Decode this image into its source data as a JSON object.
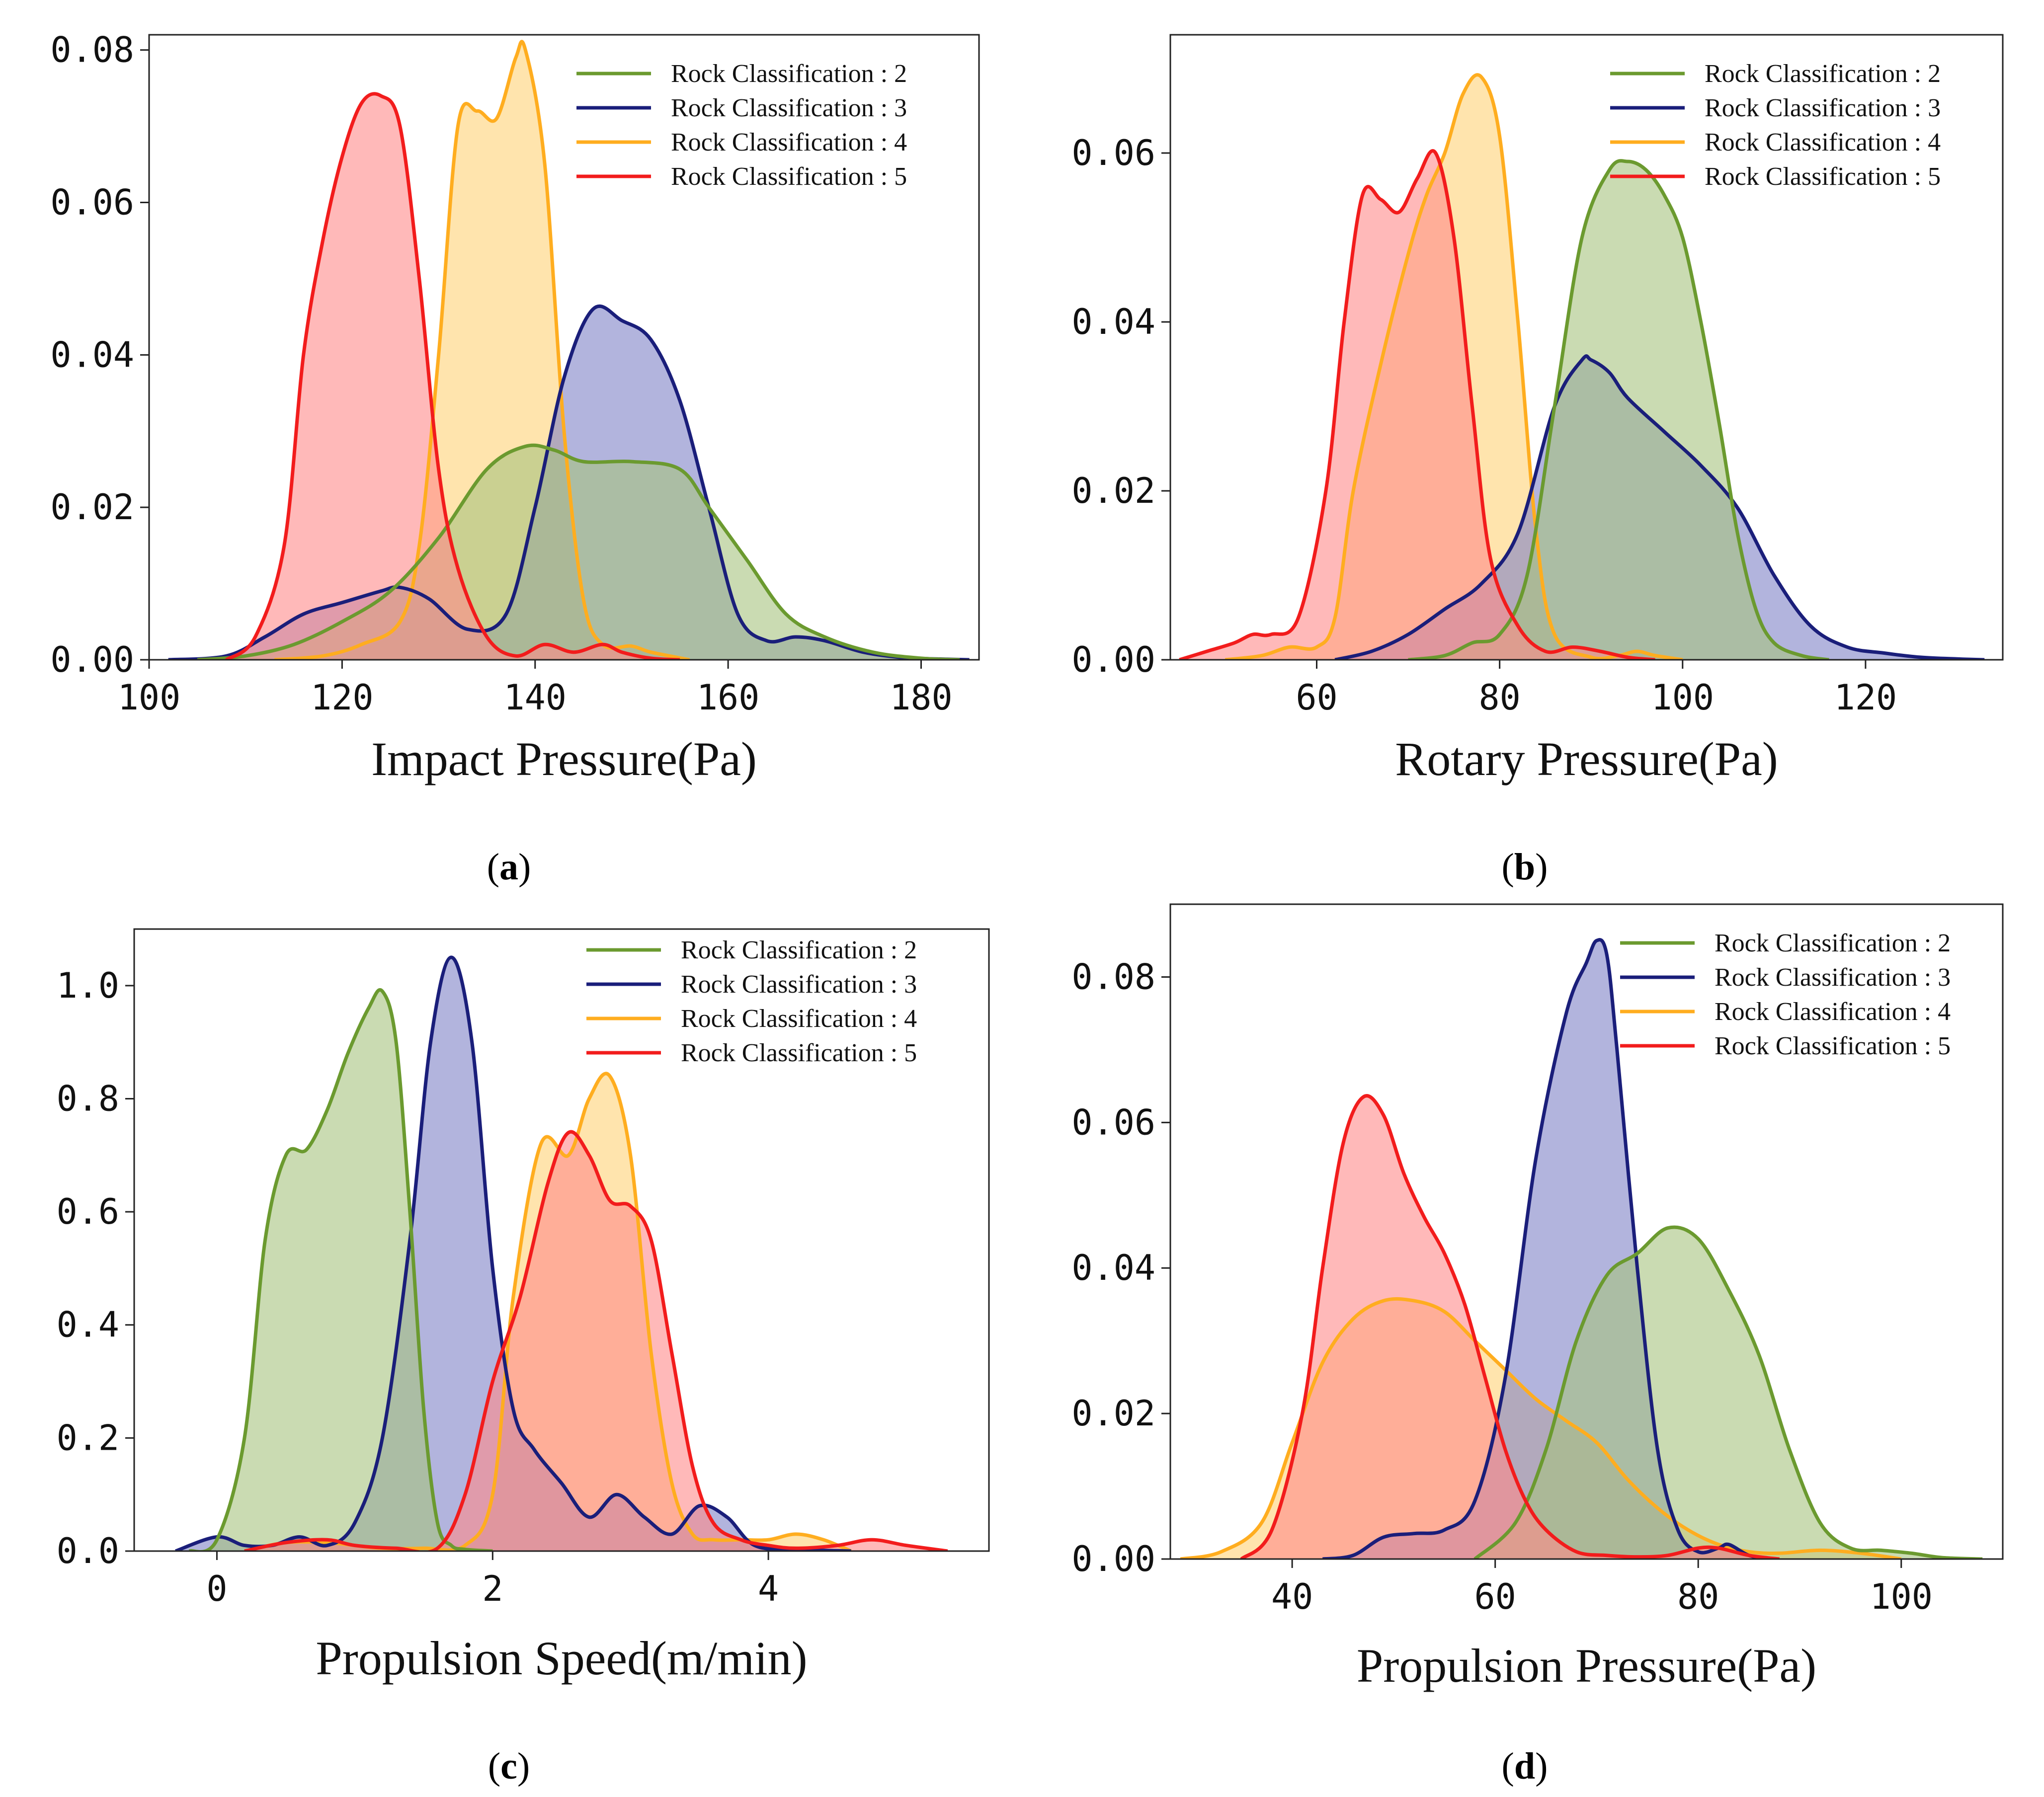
{
  "colors": {
    "rock2": "#6b9a2f",
    "rock3": "#1a1e7a",
    "rock4": "#ffad1f",
    "rock5": "#f21c1c",
    "fill2": "#a6c37f",
    "fill3": "#7f82c6",
    "fill4": "#ffd277",
    "fill5": "#ff8a8a"
  },
  "chart_data": [
    {
      "type": "area",
      "panel": "(a)",
      "caption_letter": "a",
      "xlabel": "Impact Pressure(Pa)",
      "ylabel": "",
      "xlim": [
        100,
        186
      ],
      "ylim": [
        0,
        0.082
      ],
      "xticks": [
        100,
        120,
        140,
        160,
        180
      ],
      "xtick_labels": [
        "100",
        "120",
        "140",
        "160",
        "180"
      ],
      "yticks": [
        0,
        0.02,
        0.04,
        0.06,
        0.08
      ],
      "ytick_labels": [
        "0.00",
        "0.02",
        "0.04",
        "0.06",
        "0.08"
      ],
      "legend": "top-right",
      "series": [
        {
          "name": "Rock Classification : 2",
          "key": "rock2",
          "x": [
            105,
            110,
            115,
            120,
            125,
            130,
            135,
            139,
            142,
            145,
            150,
            155,
            158,
            162,
            166,
            170,
            175,
            180,
            184
          ],
          "y": [
            0,
            0.0005,
            0.002,
            0.005,
            0.009,
            0.016,
            0.025,
            0.028,
            0.0275,
            0.026,
            0.026,
            0.025,
            0.02,
            0.013,
            0.006,
            0.003,
            0.001,
            0.0002,
            0
          ]
        },
        {
          "name": "Rock Classification : 3",
          "key": "rock3",
          "x": [
            102,
            108,
            112,
            116,
            120,
            124,
            126,
            129,
            133,
            137,
            140,
            143,
            146,
            149,
            152,
            155,
            158,
            161,
            164,
            167,
            170,
            174,
            178,
            182,
            185
          ],
          "y": [
            0,
            0.0005,
            0.003,
            0.006,
            0.0075,
            0.009,
            0.0095,
            0.008,
            0.004,
            0.006,
            0.02,
            0.037,
            0.046,
            0.0445,
            0.042,
            0.034,
            0.02,
            0.006,
            0.0025,
            0.003,
            0.0025,
            0.001,
            0.0003,
            0.0001,
            0
          ]
        },
        {
          "name": "Rock Classification : 4",
          "key": "rock4",
          "x": [
            113,
            118,
            122,
            126,
            128,
            130,
            132,
            134,
            136,
            138,
            139,
            141,
            143,
            145,
            147,
            150,
            152,
            156
          ],
          "y": [
            0,
            0.0005,
            0.002,
            0.005,
            0.015,
            0.04,
            0.07,
            0.072,
            0.071,
            0.079,
            0.08,
            0.065,
            0.03,
            0.008,
            0.002,
            0.0018,
            0.001,
            0
          ]
        },
        {
          "name": "Rock Classification : 5",
          "key": "rock5",
          "x": [
            108,
            111,
            114,
            116,
            118,
            120,
            122,
            124,
            126,
            128,
            130,
            132,
            135,
            138,
            141,
            144,
            147,
            149,
            152,
            155
          ],
          "y": [
            0,
            0.003,
            0.015,
            0.04,
            0.055,
            0.066,
            0.073,
            0.074,
            0.07,
            0.05,
            0.025,
            0.012,
            0.003,
            0.0005,
            0.002,
            0.001,
            0.002,
            0.001,
            0.0002,
            0
          ]
        }
      ]
    },
    {
      "type": "area",
      "panel": "(b)",
      "caption_letter": "b",
      "xlabel": "Rotary Pressure(Pa)",
      "ylabel": "",
      "xlim": [
        44,
        135
      ],
      "ylim": [
        0,
        0.074
      ],
      "xticks": [
        60,
        80,
        100,
        120
      ],
      "xtick_labels": [
        "60",
        "80",
        "100",
        "120"
      ],
      "yticks": [
        0,
        0.02,
        0.04,
        0.06
      ],
      "ytick_labels": [
        "0.00",
        "0.02",
        "0.04",
        "0.06"
      ],
      "legend": "top-right",
      "series": [
        {
          "name": "Rock Classification : 2",
          "key": "rock2",
          "x": [
            70,
            74,
            77,
            80,
            83,
            86,
            89,
            92,
            94,
            96,
            98,
            100,
            102,
            104,
            106,
            108,
            110,
            113,
            116
          ],
          "y": [
            0,
            0.0005,
            0.002,
            0.003,
            0.01,
            0.03,
            0.05,
            0.058,
            0.059,
            0.058,
            0.055,
            0.05,
            0.04,
            0.028,
            0.015,
            0.006,
            0.002,
            0.0005,
            0
          ]
        },
        {
          "name": "Rock Classification : 3",
          "key": "rock3",
          "x": [
            62,
            66,
            70,
            74,
            78,
            82,
            86,
            89,
            90,
            92,
            94,
            98,
            102,
            106,
            110,
            114,
            118,
            122,
            126,
            130,
            133
          ],
          "y": [
            0,
            0.001,
            0.003,
            0.006,
            0.009,
            0.015,
            0.03,
            0.0355,
            0.0355,
            0.034,
            0.031,
            0.027,
            0.023,
            0.018,
            0.01,
            0.004,
            0.0015,
            0.0008,
            0.0003,
            0.0001,
            0
          ]
        },
        {
          "name": "Rock Classification : 4",
          "key": "rock4",
          "x": [
            50,
            54,
            57,
            60,
            62,
            64,
            67,
            70,
            72,
            74,
            76,
            78,
            80,
            82,
            84,
            86,
            90,
            93,
            95,
            97,
            100
          ],
          "y": [
            0,
            0.0005,
            0.0015,
            0.0015,
            0.005,
            0.02,
            0.035,
            0.048,
            0.055,
            0.06,
            0.067,
            0.069,
            0.062,
            0.04,
            0.015,
            0.003,
            0.0003,
            0.0005,
            0.001,
            0.0005,
            0
          ]
        },
        {
          "name": "Rock Classification : 5",
          "key": "rock5",
          "x": [
            45,
            48,
            51,
            53,
            55,
            58,
            61,
            63,
            65,
            67,
            69,
            71,
            73,
            75,
            77,
            79,
            82,
            85,
            88,
            91,
            94,
            97
          ],
          "y": [
            0,
            0.001,
            0.002,
            0.003,
            0.003,
            0.005,
            0.02,
            0.04,
            0.055,
            0.0545,
            0.053,
            0.057,
            0.06,
            0.05,
            0.03,
            0.012,
            0.004,
            0.001,
            0.0015,
            0.001,
            0.0003,
            0
          ]
        }
      ]
    },
    {
      "type": "area",
      "panel": "(c)",
      "caption_letter": "c",
      "xlabel": "Propulsion Speed(m/min)",
      "ylabel": "",
      "xlim": [
        -0.6,
        5.6
      ],
      "ylim": [
        0,
        1.1
      ],
      "xticks": [
        0,
        2,
        4
      ],
      "xtick_labels": [
        "0",
        "2",
        "4"
      ],
      "yticks": [
        0,
        0.2,
        0.4,
        0.6,
        0.8,
        1.0
      ],
      "ytick_labels": [
        "0.0",
        "0.2",
        "0.4",
        "0.6",
        "0.8",
        "1.0"
      ],
      "legend": "top-right",
      "series": [
        {
          "name": "Rock Classification : 2",
          "key": "rock2",
          "x": [
            -0.2,
            0,
            0.2,
            0.35,
            0.5,
            0.65,
            0.8,
            0.95,
            1.1,
            1.2,
            1.3,
            1.4,
            1.5,
            1.6,
            1.7,
            1.8,
            2.0
          ],
          "y": [
            0,
            0.02,
            0.2,
            0.55,
            0.7,
            0.71,
            0.78,
            0.88,
            0.96,
            0.99,
            0.9,
            0.6,
            0.25,
            0.05,
            0.01,
            0.003,
            0
          ]
        },
        {
          "name": "Rock Classification : 3",
          "key": "rock3",
          "x": [
            -0.3,
            0,
            0.2,
            0.4,
            0.6,
            0.8,
            1.0,
            1.2,
            1.4,
            1.55,
            1.7,
            1.85,
            2.0,
            2.15,
            2.3,
            2.5,
            2.7,
            2.9,
            3.1,
            3.3,
            3.5,
            3.7,
            3.9,
            4.2,
            4.6
          ],
          "y": [
            0,
            0.025,
            0.01,
            0.01,
            0.025,
            0.01,
            0.05,
            0.2,
            0.55,
            0.9,
            1.05,
            0.9,
            0.5,
            0.25,
            0.18,
            0.12,
            0.06,
            0.1,
            0.06,
            0.03,
            0.08,
            0.06,
            0.01,
            0.003,
            0
          ]
        },
        {
          "name": "Rock Classification : 4",
          "key": "rock4",
          "x": [
            0.2,
            0.5,
            0.8,
            1.0,
            1.2,
            1.5,
            1.8,
            2.0,
            2.15,
            2.35,
            2.55,
            2.7,
            2.85,
            3.0,
            3.15,
            3.3,
            3.45,
            3.6,
            3.8,
            4.0,
            4.2,
            4.4,
            4.6
          ],
          "y": [
            0,
            0.015,
            0.015,
            0.01,
            0.005,
            0.005,
            0.01,
            0.1,
            0.45,
            0.72,
            0.7,
            0.8,
            0.84,
            0.7,
            0.35,
            0.12,
            0.03,
            0.02,
            0.02,
            0.02,
            0.03,
            0.02,
            0
          ]
        },
        {
          "name": "Rock Classification : 5",
          "key": "rock5",
          "x": [
            0.2,
            0.5,
            0.8,
            1.0,
            1.3,
            1.6,
            1.8,
            2.0,
            2.2,
            2.4,
            2.55,
            2.7,
            2.85,
            3.0,
            3.15,
            3.3,
            3.45,
            3.6,
            3.8,
            4.0,
            4.2,
            4.5,
            4.75,
            5.0,
            5.3
          ],
          "y": [
            0,
            0.015,
            0.02,
            0.01,
            0.005,
            0.005,
            0.1,
            0.3,
            0.45,
            0.65,
            0.74,
            0.7,
            0.62,
            0.61,
            0.55,
            0.35,
            0.15,
            0.05,
            0.02,
            0.01,
            0.005,
            0.01,
            0.02,
            0.01,
            0
          ]
        }
      ]
    },
    {
      "type": "area",
      "panel": "(d)",
      "caption_letter": "d",
      "xlabel": "Propulsion Pressure(Pa)",
      "ylabel": "",
      "xlim": [
        28,
        110
      ],
      "ylim": [
        0,
        0.09
      ],
      "xticks": [
        40,
        60,
        80,
        100
      ],
      "xtick_labels": [
        "40",
        "60",
        "80",
        "100"
      ],
      "yticks": [
        0,
        0.02,
        0.04,
        0.06,
        0.08
      ],
      "ytick_labels": [
        "0.00",
        "0.02",
        "0.04",
        "0.06",
        "0.08"
      ],
      "legend": "top-right",
      "series": [
        {
          "name": "Rock Classification : 2",
          "key": "rock2",
          "x": [
            58,
            62,
            65,
            68,
            71,
            74,
            77,
            80,
            83,
            86,
            89,
            92,
            95,
            98,
            101,
            104,
            108
          ],
          "y": [
            0,
            0.005,
            0.015,
            0.03,
            0.039,
            0.042,
            0.0455,
            0.044,
            0.037,
            0.028,
            0.015,
            0.005,
            0.0015,
            0.0012,
            0.0008,
            0.0002,
            0
          ]
        },
        {
          "name": "Rock Classification : 3",
          "key": "rock3",
          "x": [
            43,
            46,
            49,
            52,
            55,
            58,
            61,
            64,
            67,
            69,
            70,
            71,
            72,
            74,
            76,
            78,
            80,
            82,
            83,
            85,
            87
          ],
          "y": [
            0,
            0.0005,
            0.003,
            0.0035,
            0.004,
            0.008,
            0.025,
            0.055,
            0.075,
            0.082,
            0.085,
            0.083,
            0.07,
            0.04,
            0.015,
            0.004,
            0.001,
            0.0015,
            0.002,
            0.0005,
            0
          ]
        },
        {
          "name": "Rock Classification : 4",
          "key": "rock4",
          "x": [
            29,
            33,
            37,
            40,
            43,
            46,
            49,
            52,
            55,
            58,
            61,
            64,
            67,
            70,
            73,
            76,
            79,
            82,
            85,
            88,
            92,
            96,
            100
          ],
          "y": [
            0,
            0.001,
            0.005,
            0.016,
            0.027,
            0.033,
            0.0355,
            0.0355,
            0.034,
            0.03,
            0.026,
            0.022,
            0.019,
            0.016,
            0.011,
            0.007,
            0.004,
            0.002,
            0.001,
            0.0008,
            0.0012,
            0.0008,
            0
          ]
        },
        {
          "name": "Rock Classification : 5",
          "key": "rock5",
          "x": [
            35,
            38,
            41,
            43,
            45,
            47,
            49,
            51,
            53,
            55,
            57,
            59,
            61,
            63,
            65,
            68,
            71,
            74,
            77,
            80,
            82,
            85,
            88
          ],
          "y": [
            0,
            0.004,
            0.02,
            0.04,
            0.057,
            0.0635,
            0.061,
            0.053,
            0.047,
            0.042,
            0.035,
            0.025,
            0.015,
            0.008,
            0.004,
            0.001,
            0.0005,
            0.0003,
            0.0005,
            0.0015,
            0.0015,
            0.0005,
            0
          ]
        }
      ]
    }
  ]
}
